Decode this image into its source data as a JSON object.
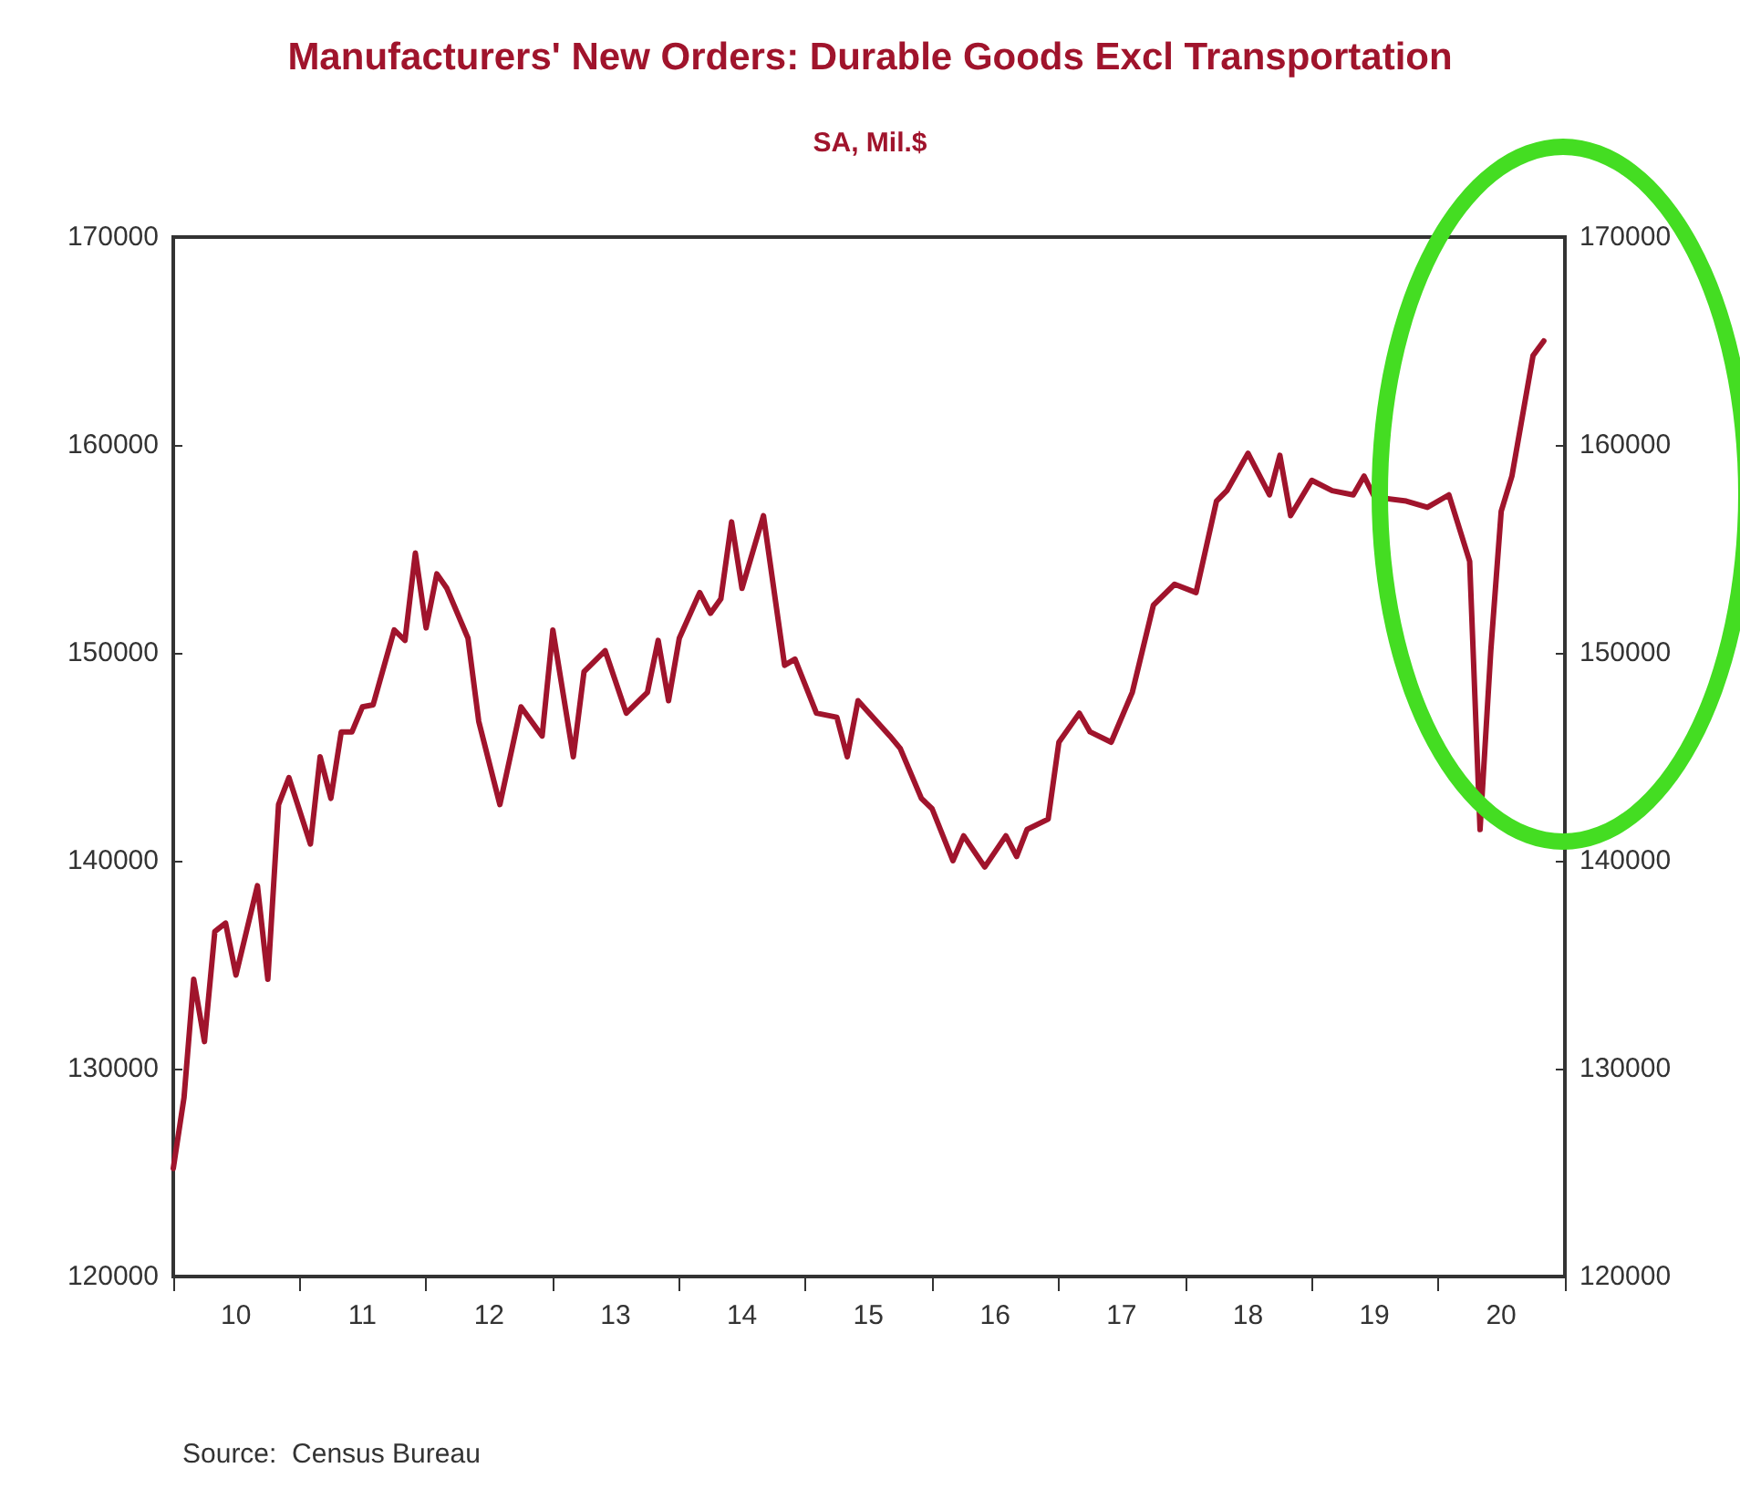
{
  "chart_data": {
    "type": "line",
    "title": "Manufacturers' New Orders: Durable Goods Excl Transportation",
    "subtitle": "SA, Mil.$",
    "annotations": [
      "Source:  Census Bureau"
    ],
    "x": [
      "2010-01",
      "2010-02",
      "2010-03",
      "2010-04",
      "2010-05",
      "2010-06",
      "2010-07",
      "2010-09",
      "2010-10",
      "2010-11",
      "2010-12",
      "2011-02",
      "2011-03",
      "2011-04",
      "2011-05",
      "2011-06",
      "2011-07",
      "2011-08",
      "2011-10",
      "2011-11",
      "2011-12",
      "2012-01",
      "2012-02",
      "2012-03",
      "2012-05",
      "2012-06",
      "2012-08",
      "2012-10",
      "2012-12",
      "2013-01",
      "2013-03",
      "2013-04",
      "2013-06",
      "2013-08",
      "2013-10",
      "2013-11",
      "2013-12",
      "2014-01",
      "2014-03",
      "2014-04",
      "2014-05",
      "2014-06",
      "2014-07",
      "2014-09",
      "2014-11",
      "2014-12",
      "2015-02",
      "2015-04",
      "2015-05",
      "2015-06",
      "2015-09",
      "2015-10",
      "2015-12",
      "2016-01",
      "2016-03",
      "2016-04",
      "2016-06",
      "2016-08",
      "2016-09",
      "2016-10",
      "2016-12",
      "2017-01",
      "2017-03",
      "2017-04",
      "2017-06",
      "2017-08",
      "2017-10",
      "2017-12",
      "2018-02",
      "2018-04",
      "2018-05",
      "2018-07",
      "2018-09",
      "2018-10",
      "2018-11",
      "2019-01",
      "2019-03",
      "2019-05",
      "2019-06",
      "2019-07",
      "2019-10",
      "2019-12",
      "2020-02",
      "2020-04",
      "2020-05",
      "2020-06",
      "2020-07",
      "2020-08",
      "2020-10",
      "2020-11"
    ],
    "series": [
      {
        "color": "#a0142c",
        "values": [
          125200,
          128600,
          134300,
          131300,
          136600,
          137000,
          134500,
          138800,
          134300,
          142700,
          144000,
          140800,
          145000,
          143000,
          146200,
          146200,
          147400,
          147500,
          151100,
          150600,
          154800,
          151200,
          153800,
          153100,
          150700,
          146700,
          142700,
          147400,
          146000,
          151100,
          145000,
          149100,
          150100,
          147100,
          148100,
          150600,
          147700,
          150700,
          152900,
          151900,
          152600,
          156300,
          153100,
          156600,
          149400,
          149700,
          147100,
          146900,
          145000,
          147700,
          146000,
          145400,
          143000,
          142500,
          140000,
          141200,
          139700,
          141200,
          140200,
          141500,
          142000,
          145700,
          147100,
          146200,
          145700,
          148100,
          152300,
          153300,
          152900,
          157300,
          157800,
          159600,
          157600,
          159500,
          156600,
          158300,
          157800,
          157600,
          158500,
          157500,
          157300,
          157000,
          157600,
          154400,
          141500,
          150100,
          156800,
          158500,
          164300,
          165000
        ]
      }
    ],
    "xlim": [
      "2010-01",
      "2021-01"
    ],
    "xticks": [
      {
        "value": "2010-01",
        "label": null
      },
      {
        "value": "2010-07",
        "label": "10"
      },
      {
        "value": "2011-01",
        "label": null
      },
      {
        "value": "2011-07",
        "label": "11"
      },
      {
        "value": "2012-01",
        "label": null
      },
      {
        "value": "2012-07",
        "label": "12"
      },
      {
        "value": "2013-01",
        "label": null
      },
      {
        "value": "2013-07",
        "label": "13"
      },
      {
        "value": "2014-01",
        "label": null
      },
      {
        "value": "2014-07",
        "label": "14"
      },
      {
        "value": "2015-01",
        "label": null
      },
      {
        "value": "2015-07",
        "label": "15"
      },
      {
        "value": "2016-01",
        "label": null
      },
      {
        "value": "2016-07",
        "label": "16"
      },
      {
        "value": "2017-01",
        "label": null
      },
      {
        "value": "2017-07",
        "label": "17"
      },
      {
        "value": "2018-01",
        "label": null
      },
      {
        "value": "2018-07",
        "label": "18"
      },
      {
        "value": "2019-01",
        "label": null
      },
      {
        "value": "2019-07",
        "label": "19"
      },
      {
        "value": "2020-01",
        "label": null
      },
      {
        "value": "2020-07",
        "label": "20"
      },
      {
        "value": "2021-01",
        "label": null
      }
    ],
    "ylim": [
      120000,
      170000
    ],
    "yticks": [
      120000,
      130000,
      140000,
      150000,
      160000,
      170000
    ],
    "y2lim": [
      120000,
      170000
    ],
    "y2ticks": [
      120000,
      130000,
      140000,
      150000,
      160000,
      170000
    ],
    "grid": false,
    "marker": "none",
    "line_style": "solid"
  }
}
